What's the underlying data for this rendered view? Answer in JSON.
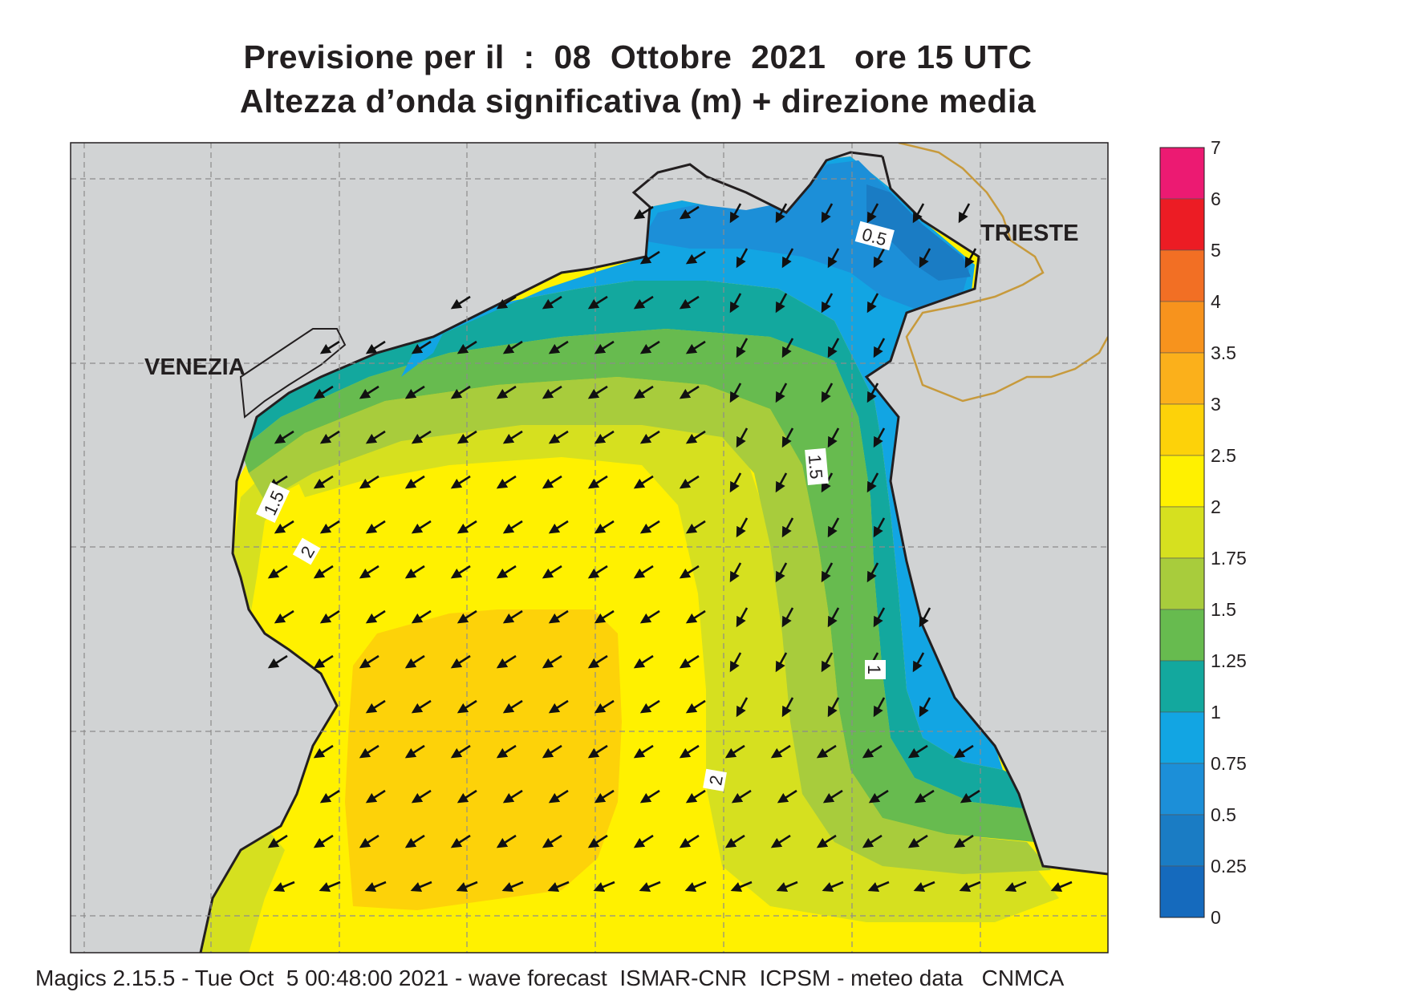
{
  "header": {
    "title_line1": "Previsione per il  :  08  Ottobre  2021   ore 15 UTC",
    "title_line2": "Altezza d’onda significativa (m) + direzione media"
  },
  "map": {
    "city_labels": [
      "VENEZIA",
      "TRIESTE"
    ],
    "contour_labels": [
      "0.5",
      "1.5",
      "1.5",
      "2",
      "1",
      "2"
    ],
    "colors": {
      "land": "#d1d3d4",
      "border": "#c79a3c",
      "sea_deep_blue": "#1a7cc4",
      "sea_blue": "#2d9be0"
    }
  },
  "colorbar": {
    "levels": [
      "7",
      "6",
      "5",
      "4",
      "3.5",
      "3",
      "2.5",
      "2",
      "1.75",
      "1.5",
      "1.25",
      "1",
      "0.75",
      "0.5",
      "0.25",
      "0"
    ],
    "colors": [
      "#ec1a72",
      "#ec1c24",
      "#f26f24",
      "#f7931d",
      "#fbb01b",
      "#fdd209",
      "#fff100",
      "#d6e01f",
      "#a8cc3c",
      "#67bb4f",
      "#13a89e",
      "#12a5e3",
      "#1c8fd8",
      "#1a7cc4",
      "#156abd"
    ]
  },
  "footer": {
    "text": "Magics 2.15.5 - Tue Oct  5 00:48:00 2021 - wave forecast  ISMAR-CNR  ICPSM - meteo data   CNMCA"
  }
}
